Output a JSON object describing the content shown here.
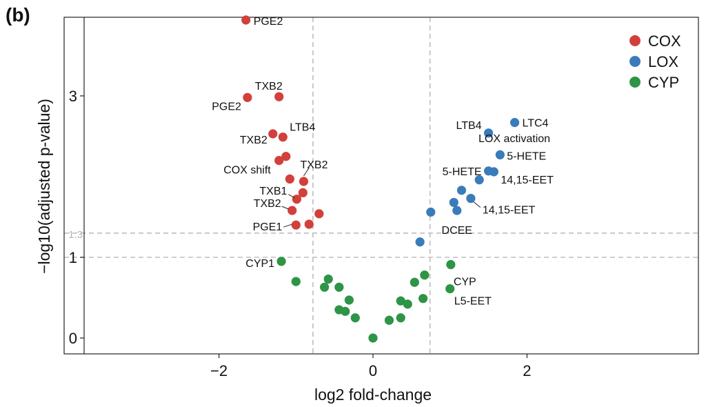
{
  "panel_label": "(b)",
  "chart_data": {
    "type": "scatter",
    "xlabel": "log2 fold-change",
    "ylabel": "−log10(adjusted p-value)",
    "xlim": [
      -3.75,
      4.2
    ],
    "ylim": [
      -0.2,
      3.95
    ],
    "x_ticks": [
      "−2",
      "0",
      "2"
    ],
    "x_tick_values": [
      -2,
      0,
      2
    ],
    "y_ticks": [
      "0",
      "1",
      "3"
    ],
    "y_tick_values": [
      0,
      1,
      3
    ],
    "threshold_label": "1.3",
    "threshold_y": [
      1.3,
      1.0
    ],
    "threshold_x": [
      -0.78,
      0.74
    ],
    "grid": false,
    "legend_position": "top-right",
    "annotation": "LOX activation",
    "colors": {
      "COX": "#d2403c",
      "LOX": "#3a7cba",
      "CYP": "#2e9446"
    },
    "series": [
      {
        "name": "COX",
        "points": [
          {
            "x": -1.65,
            "y": 3.94,
            "label": "PGE2"
          },
          {
            "x": -1.63,
            "y": 2.98,
            "label": "PGE2"
          },
          {
            "x": -1.22,
            "y": 2.99,
            "label": "TXB2"
          },
          {
            "x": -1.3,
            "y": 2.53,
            "label": "TXB2"
          },
          {
            "x": -1.17,
            "y": 2.49,
            "label": "LTB4"
          },
          {
            "x": -1.13,
            "y": 2.25,
            "label": ""
          },
          {
            "x": -1.22,
            "y": 2.2,
            "label": "COX shift"
          },
          {
            "x": -1.08,
            "y": 1.97,
            "label": ""
          },
          {
            "x": -0.9,
            "y": 1.94,
            "label": "TXB2"
          },
          {
            "x": -0.91,
            "y": 1.8,
            "label": ""
          },
          {
            "x": -0.99,
            "y": 1.72,
            "label": "TXB1"
          },
          {
            "x": -1.05,
            "y": 1.58,
            "label": "TXB2"
          },
          {
            "x": -0.7,
            "y": 1.54,
            "label": ""
          },
          {
            "x": -1.0,
            "y": 1.4,
            "label": "PGE1"
          },
          {
            "x": -0.83,
            "y": 1.41,
            "label": ""
          }
        ]
      },
      {
        "name": "LOX",
        "points": [
          {
            "x": 1.84,
            "y": 2.67,
            "label": "LTC4"
          },
          {
            "x": 1.5,
            "y": 2.54,
            "label": "LTB4"
          },
          {
            "x": 1.65,
            "y": 2.27,
            "label": "5-HETE"
          },
          {
            "x": 1.5,
            "y": 2.07,
            "label": "5-HETE"
          },
          {
            "x": 1.57,
            "y": 2.06,
            "label": "14,15-EET"
          },
          {
            "x": 1.38,
            "y": 1.96,
            "label": ""
          },
          {
            "x": 1.15,
            "y": 1.83,
            "label": ""
          },
          {
            "x": 1.27,
            "y": 1.73,
            "label": "14,15-EET"
          },
          {
            "x": 1.05,
            "y": 1.68,
            "label": ""
          },
          {
            "x": 1.09,
            "y": 1.58,
            "label": "DCEE"
          },
          {
            "x": 0.75,
            "y": 1.56,
            "label": ""
          },
          {
            "x": 0.61,
            "y": 1.19,
            "label": ""
          }
        ]
      },
      {
        "name": "CYP",
        "points": [
          {
            "x": -1.19,
            "y": 0.95,
            "label": "CYP1"
          },
          {
            "x": -1.0,
            "y": 0.7,
            "label": ""
          },
          {
            "x": -0.58,
            "y": 0.73,
            "label": ""
          },
          {
            "x": -0.63,
            "y": 0.63,
            "label": ""
          },
          {
            "x": -0.44,
            "y": 0.63,
            "label": ""
          },
          {
            "x": -0.31,
            "y": 0.47,
            "label": ""
          },
          {
            "x": -0.44,
            "y": 0.35,
            "label": ""
          },
          {
            "x": -0.36,
            "y": 0.33,
            "label": ""
          },
          {
            "x": -0.23,
            "y": 0.25,
            "label": ""
          },
          {
            "x": 0.0,
            "y": 0.0,
            "label": ""
          },
          {
            "x": 0.21,
            "y": 0.22,
            "label": ""
          },
          {
            "x": 0.36,
            "y": 0.25,
            "label": ""
          },
          {
            "x": 0.36,
            "y": 0.46,
            "label": ""
          },
          {
            "x": 0.45,
            "y": 0.42,
            "label": ""
          },
          {
            "x": 0.54,
            "y": 0.69,
            "label": ""
          },
          {
            "x": 0.67,
            "y": 0.78,
            "label": ""
          },
          {
            "x": 0.65,
            "y": 0.49,
            "label": ""
          },
          {
            "x": 1.01,
            "y": 0.91,
            "label": "CYP"
          },
          {
            "x": 1.0,
            "y": 0.61,
            "label": "L5-EET"
          }
        ]
      }
    ]
  }
}
